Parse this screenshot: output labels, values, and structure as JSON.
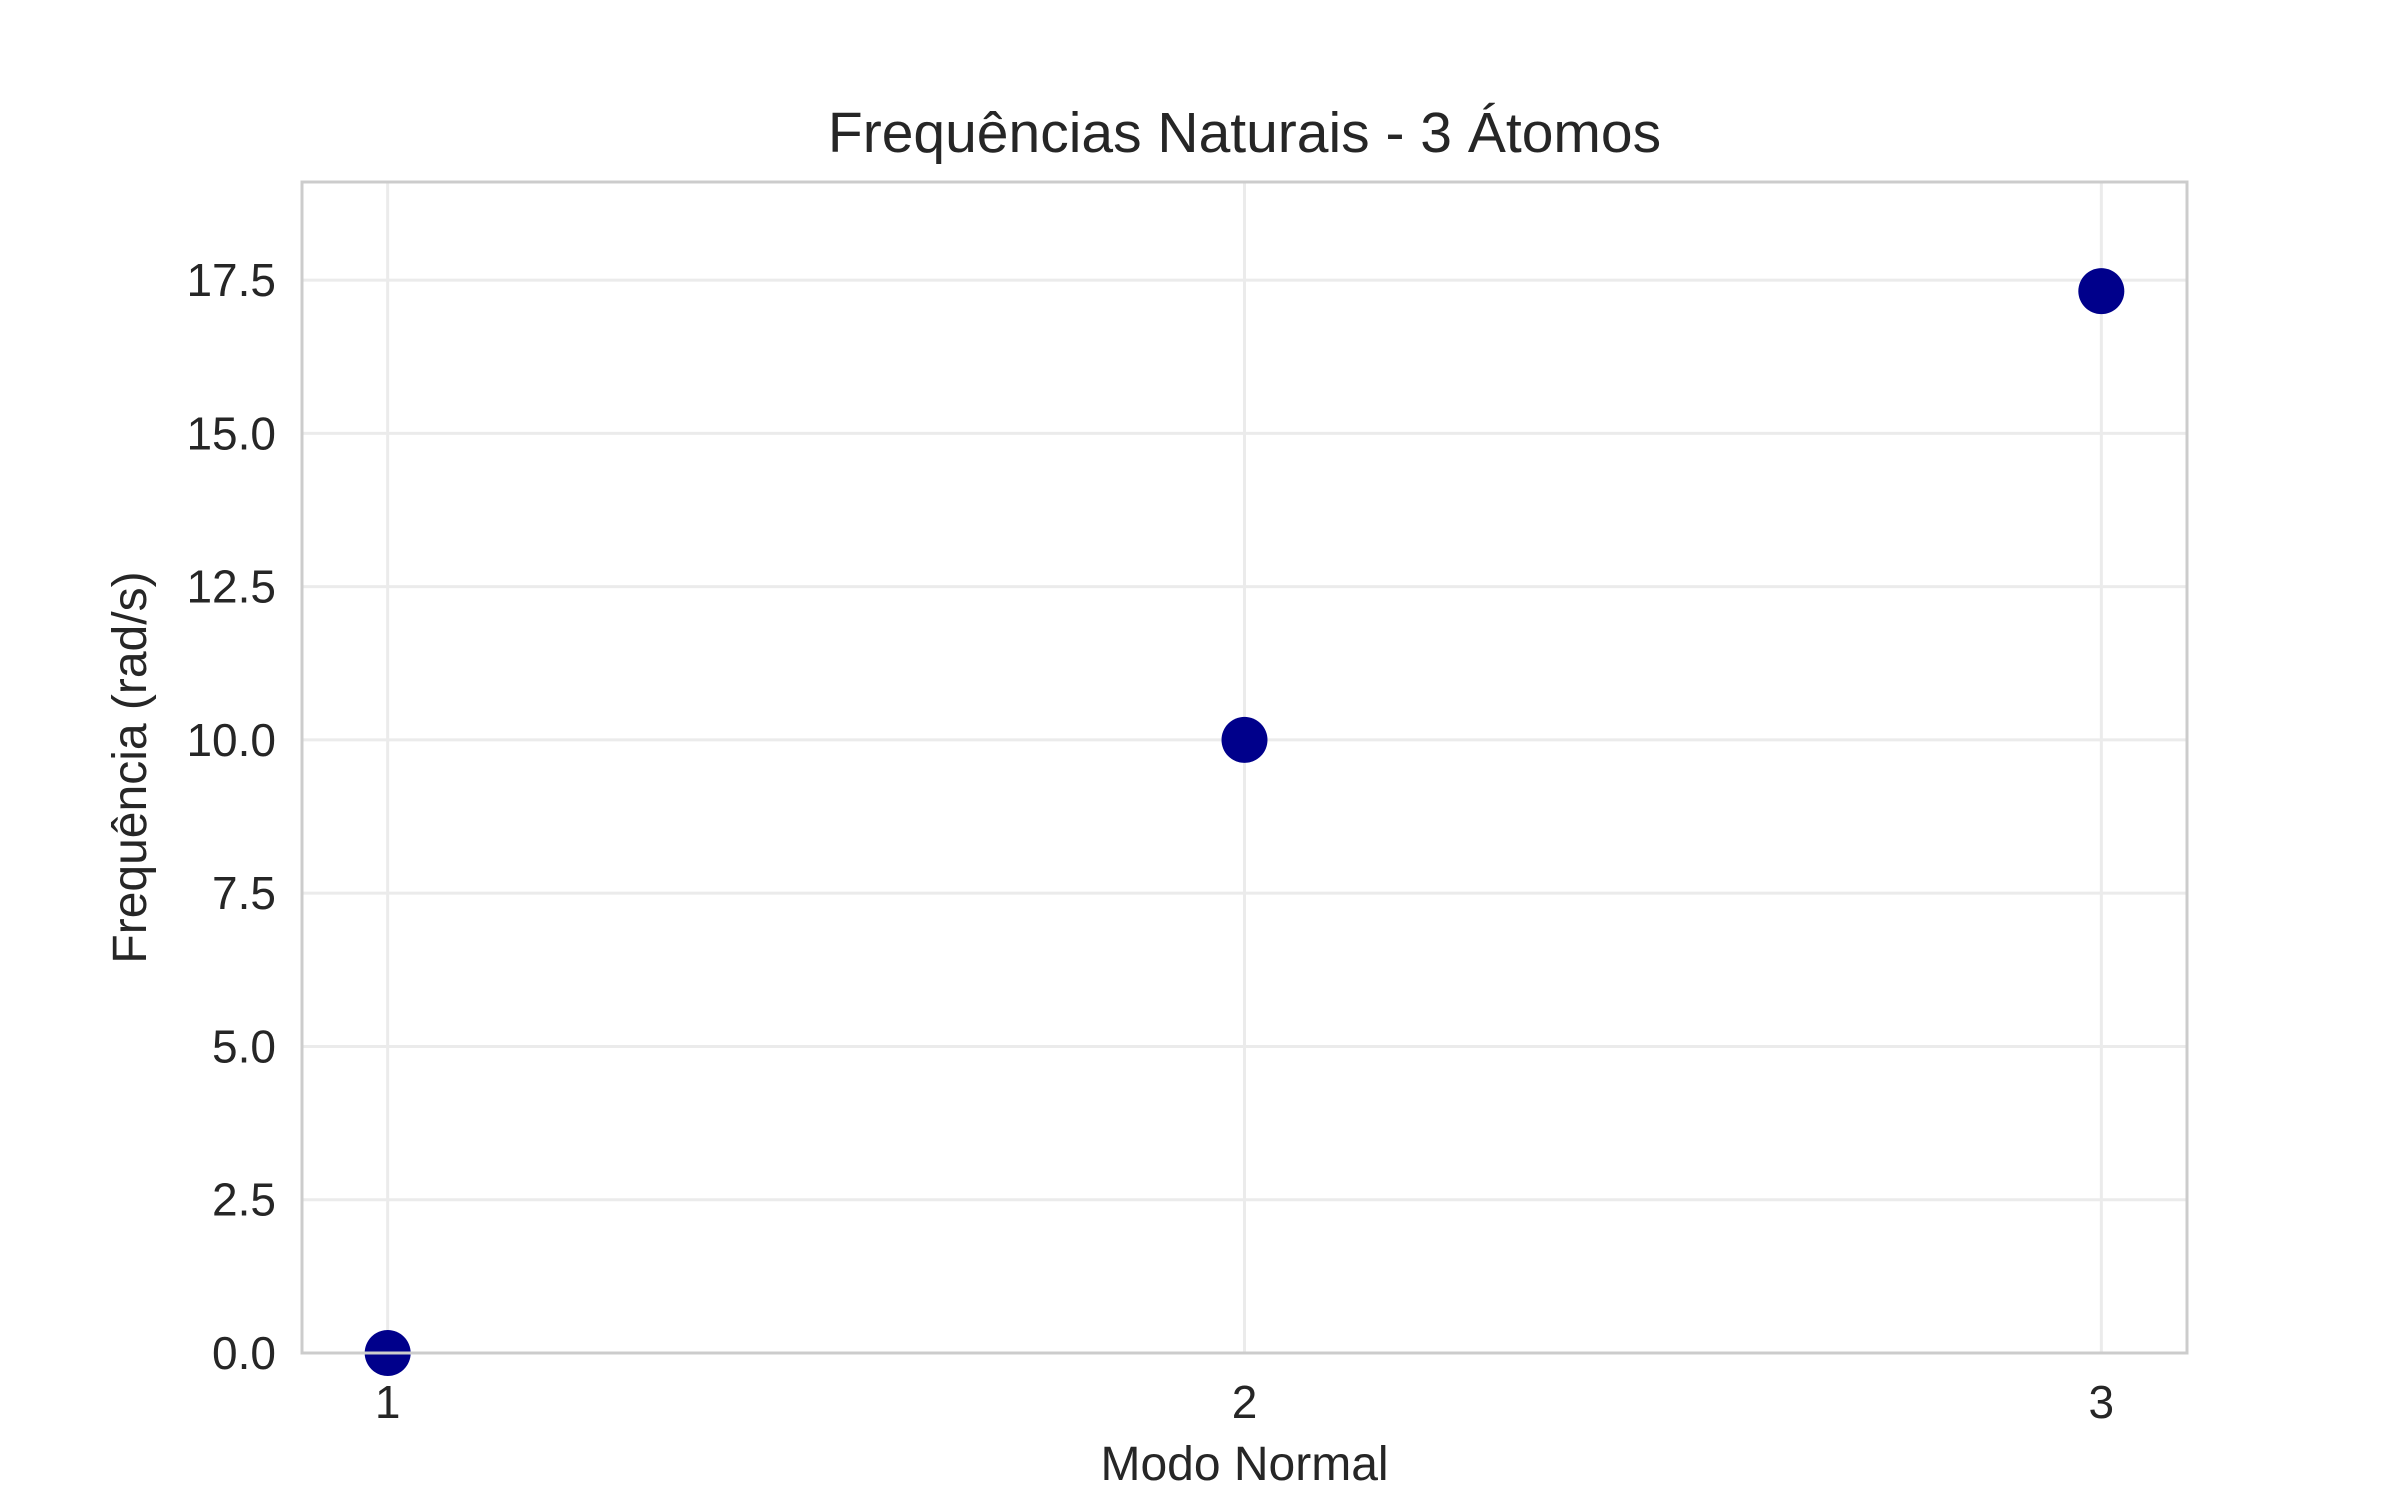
{
  "chart_data": {
    "type": "scatter",
    "title": "Frequências Naturais - 3 Átomos",
    "xlabel": "Modo Normal",
    "ylabel": "Frequência (rad/s)",
    "x_ticks": [
      {
        "value": 1,
        "label": "1"
      },
      {
        "value": 2,
        "label": "2"
      },
      {
        "value": 3,
        "label": "3"
      }
    ],
    "y_ticks": [
      {
        "value": 0.0,
        "label": "0.0"
      },
      {
        "value": 2.5,
        "label": "2.5"
      },
      {
        "value": 5.0,
        "label": "5.0"
      },
      {
        "value": 7.5,
        "label": "7.5"
      },
      {
        "value": 10.0,
        "label": "10.0"
      },
      {
        "value": 12.5,
        "label": "12.5"
      },
      {
        "value": 15.0,
        "label": "15.0"
      },
      {
        "value": 17.5,
        "label": "17.5"
      }
    ],
    "xlim": [
      0.9,
      3.1
    ],
    "ylim": [
      0,
      19.1
    ],
    "grid": true,
    "series": [
      {
        "x": [
          1,
          2,
          3
        ],
        "y": [
          0.0,
          10.0,
          17.32
        ],
        "color": "#00008b"
      }
    ],
    "colors": {
      "marker": "#00008b",
      "grid": "#ebebeb",
      "spine": "#cccccc",
      "text": "#262626"
    }
  }
}
